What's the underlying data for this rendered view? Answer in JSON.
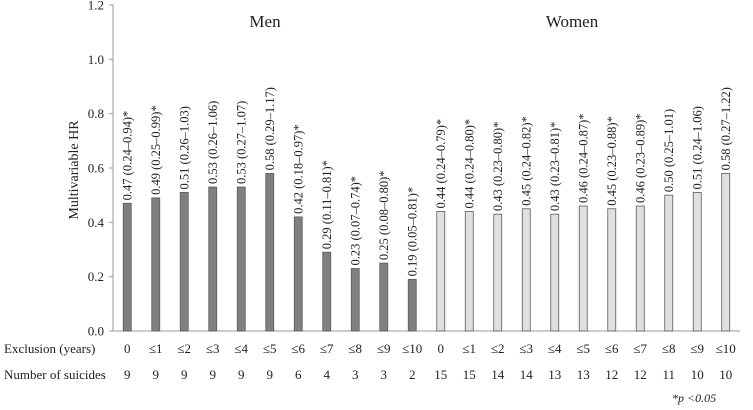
{
  "chart_data": {
    "type": "bar",
    "ylabel": "Multivariable HR",
    "ylim": [
      0,
      1.2
    ],
    "yticks": [
      "0.0",
      "0.2",
      "0.4",
      "0.6",
      "0.8",
      "1.0",
      "1.2"
    ],
    "grid": false,
    "row_labels": {
      "exclusion": "Exclusion (years)",
      "suicides": "Number of suicides"
    },
    "footnote": "*p <0.05",
    "groups": [
      {
        "name": "Men",
        "color": "#808080",
        "categories": [
          "0",
          "≤1",
          "≤2",
          "≤3",
          "≤4",
          "≤5",
          "≤6",
          "≤7",
          "≤8",
          "≤9",
          "≤10"
        ],
        "values": [
          0.47,
          0.49,
          0.51,
          0.53,
          0.53,
          0.58,
          0.42,
          0.29,
          0.23,
          0.25,
          0.19
        ],
        "labels": [
          "0.47 (0.24–0.94)*",
          "0.49 (0.25–0.99)*",
          "0.51 (0.26–1.03)",
          "0.53 (0.26–1.06)",
          "0.53 (0.27–1.07)",
          "0.58 (0.29–1.17)",
          "0.42 (0.18–0.97)*",
          "0.29 (0.11–0.81)*",
          "0.23 (0.07–0.74)*",
          "0.25 (0.08–0.80)*",
          "0.19 (0.05–0.81)*"
        ],
        "suicides": [
          "9",
          "9",
          "9",
          "9",
          "9",
          "9",
          "6",
          "4",
          "3",
          "3",
          "2"
        ]
      },
      {
        "name": "Women",
        "color": "#e0e0e0",
        "categories": [
          "0",
          "≤1",
          "≤2",
          "≤3",
          "≤4",
          "≤5",
          "≤6",
          "≤7",
          "≤8",
          "≤9",
          "≤10"
        ],
        "values": [
          0.44,
          0.44,
          0.43,
          0.45,
          0.43,
          0.46,
          0.45,
          0.46,
          0.5,
          0.51,
          0.58
        ],
        "labels": [
          "0.44 (0.24–0.79)*",
          "0.44 (0.24–0.80)*",
          "0.43 (0.23–0.80)*",
          "0.45 (0.24–0.82)*",
          "0.43 (0.23–0.81)*",
          "0.46 (0.24–0.87)*",
          "0.45 (0.23–0.88)*",
          "0.46 (0.23–0.89)*",
          "0.50 (0.25–1.01)",
          "0.51 (0.24–1.06)",
          "0.58 (0.27–1.22)"
        ],
        "suicides": [
          "15",
          "15",
          "14",
          "14",
          "13",
          "13",
          "12",
          "12",
          "11",
          "10",
          "10"
        ]
      }
    ]
  }
}
